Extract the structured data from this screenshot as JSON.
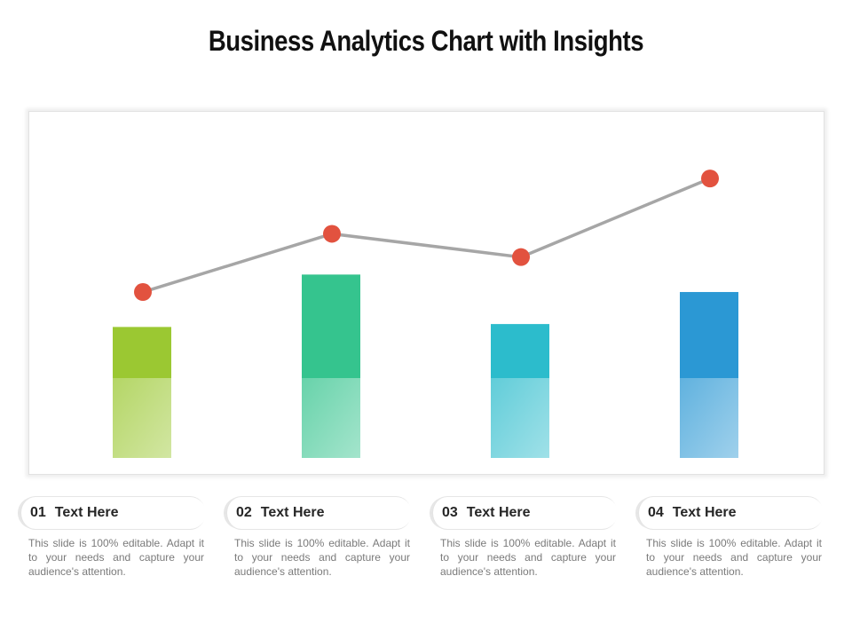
{
  "title": "Business Analytics Chart with Insights",
  "chart_data": {
    "type": "bar",
    "categories": [
      "01",
      "02",
      "03",
      "04"
    ],
    "series": [
      {
        "type": "bar",
        "values": [
          45,
          63,
          46,
          57
        ],
        "colors": [
          "#9bc832",
          "#35c48e",
          "#2cbccc",
          "#2b98d4"
        ]
      },
      {
        "type": "line",
        "values": [
          57,
          77,
          69,
          96
        ],
        "line_color": "#a6a6a6",
        "marker_color": "#e2523f"
      }
    ],
    "ylim": [
      0,
      100
    ],
    "grid": false,
    "legend": "none"
  },
  "cards": [
    {
      "num": "01",
      "label": "Text Here",
      "desc": "This slide is 100% editable. Adapt it to your needs and capture your audience's attention."
    },
    {
      "num": "02",
      "label": "Text Here",
      "desc": "This slide is 100% editable. Adapt it to your needs and capture your audience's attention."
    },
    {
      "num": "03",
      "label": "Text Here",
      "desc": "This slide is 100% editable. Adapt it to your needs and capture your audience's attention."
    },
    {
      "num": "04",
      "label": "Text Here",
      "desc": "This slide is 100% editable. Adapt it to your needs and capture your audience's attention."
    }
  ]
}
